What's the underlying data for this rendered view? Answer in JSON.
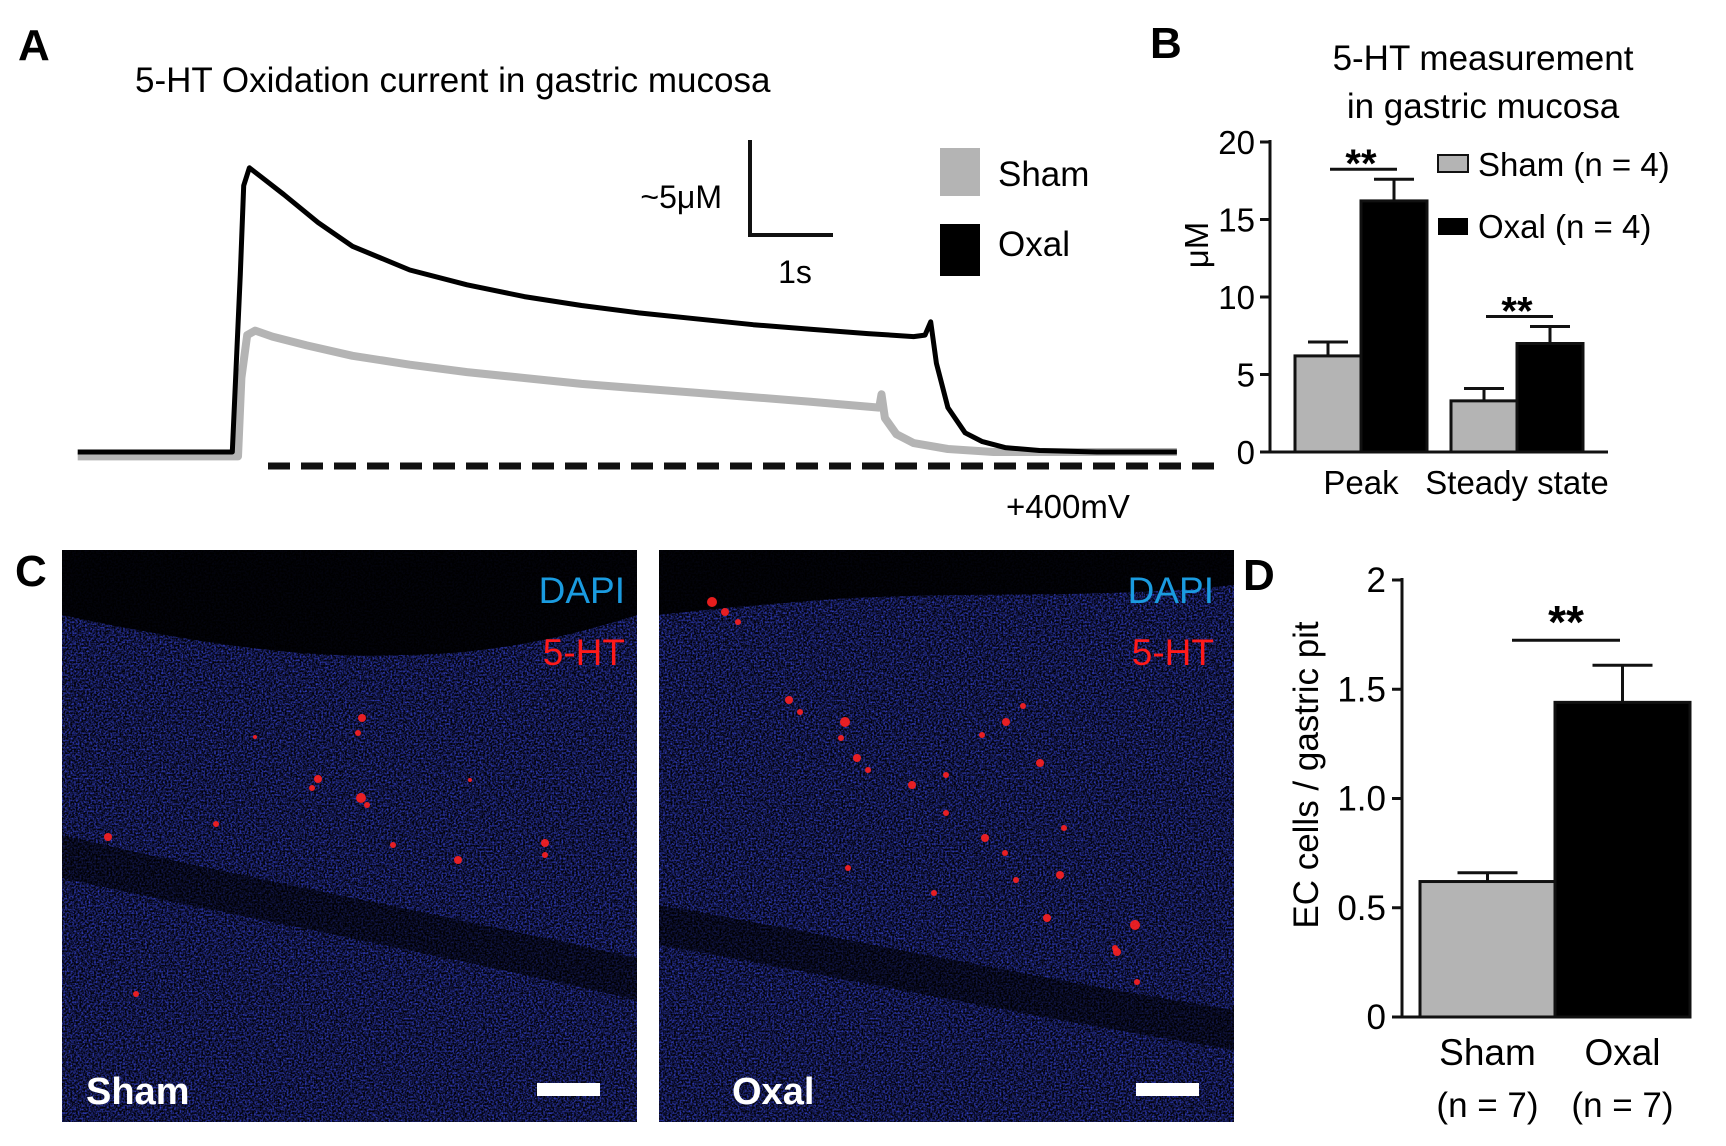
{
  "panels": {
    "A": {
      "letter": "A",
      "title": "5-HT Oxidation current in gastric mucosa",
      "scale_bar": {
        "amplitude_label": "~5μM",
        "time_label": "1s"
      },
      "legend": [
        {
          "name": "Sham",
          "color": "#b4b4b4"
        },
        {
          "name": "Oxal",
          "color": "#000000"
        }
      ],
      "stimulus_label": "+400mV"
    },
    "B": {
      "letter": "B",
      "title_lines": [
        "5-HT measurement",
        "in gastric mucosa"
      ]
    },
    "C": {
      "letter": "C",
      "images": [
        {
          "group": "Sham",
          "stain_labels": [
            "DAPI",
            "5-HT"
          ]
        },
        {
          "group": "Oxal",
          "stain_labels": [
            "DAPI",
            "5-HT"
          ]
        }
      ],
      "stain_colors": {
        "DAPI": "#1a9be0",
        "5-HT": "#ff1a1a"
      }
    },
    "D": {
      "letter": "D"
    }
  },
  "chart_data": [
    {
      "type": "line",
      "panel": "A",
      "title": "5-HT Oxidation current in gastric mucosa",
      "units": "μM",
      "x_unit": "s",
      "x_range": [
        -1.45,
        8.3
      ],
      "y_range": [
        -0.6,
        22
      ],
      "stimulus": {
        "label": "+400mV",
        "start_s": 0,
        "end_s": 6.4
      },
      "series": [
        {
          "name": "Oxal",
          "color": "#000000",
          "x": [
            -1.4,
            -0.05,
            0.02,
            0.05,
            0.1,
            0.2,
            0.4,
            0.7,
            1.0,
            1.5,
            2.0,
            2.5,
            3.0,
            3.5,
            4.0,
            4.5,
            5.0,
            5.5,
            5.9,
            6.0,
            6.05,
            6.1,
            6.2,
            6.35,
            6.5,
            6.7,
            7.0,
            7.5,
            8.0,
            8.2
          ],
          "y": [
            0.0,
            0.0,
            12.0,
            18.0,
            19.2,
            18.6,
            17.4,
            15.5,
            13.9,
            12.3,
            11.3,
            10.5,
            9.9,
            9.4,
            9.0,
            8.6,
            8.3,
            8.0,
            7.8,
            7.9,
            8.8,
            6.0,
            3.0,
            1.3,
            0.7,
            0.3,
            0.1,
            0.0,
            0.0,
            0.0
          ]
        },
        {
          "name": "Sham",
          "color": "#b4b4b4",
          "x": [
            -1.4,
            0.0,
            0.03,
            0.08,
            0.15,
            0.3,
            0.6,
            1.0,
            1.5,
            2.0,
            2.5,
            3.0,
            3.5,
            4.0,
            4.5,
            5.0,
            5.6,
            5.62,
            5.65,
            5.75,
            5.9,
            6.2,
            6.6,
            7.0,
            7.5,
            8.0,
            8.2
          ],
          "y": [
            -0.3,
            -0.3,
            5.0,
            7.9,
            8.2,
            7.8,
            7.2,
            6.5,
            5.9,
            5.4,
            5.0,
            4.6,
            4.3,
            4.0,
            3.7,
            3.4,
            3.0,
            3.9,
            2.3,
            1.2,
            0.6,
            0.2,
            0.0,
            0.0,
            0.0,
            0.0,
            0.0
          ]
        }
      ]
    },
    {
      "type": "bar",
      "panel": "B",
      "title": "5-HT measurement in gastric mucosa",
      "ylabel": "μM",
      "ylim": [
        0,
        20
      ],
      "yticks": [
        0,
        5,
        10,
        15,
        20
      ],
      "categories": [
        "Peak",
        "Steady state"
      ],
      "series": [
        {
          "name": "Sham (n = 4)",
          "color": "#b4b4b4",
          "values": [
            6.2,
            3.3
          ],
          "errors": [
            0.9,
            0.8
          ]
        },
        {
          "name": "Oxal (n = 4)",
          "color": "#000000",
          "values": [
            16.2,
            7.0
          ],
          "errors": [
            1.4,
            1.1
          ]
        }
      ],
      "significance": [
        {
          "category": "Peak",
          "label": "**"
        },
        {
          "category": "Steady state",
          "label": "**"
        }
      ]
    },
    {
      "type": "bar",
      "panel": "D",
      "ylabel": "EC cells / gastric pit",
      "ylim": [
        0,
        2
      ],
      "yticks": [
        0,
        0.5,
        1.0,
        1.5,
        2
      ],
      "ytick_labels": [
        "0",
        "0.5",
        "1.0",
        "1.5",
        "2"
      ],
      "categories": [
        "Sham",
        "Oxal"
      ],
      "category_n": [
        "(n = 7)",
        "(n = 7)"
      ],
      "colors": [
        "#b4b4b4",
        "#000000"
      ],
      "values": [
        0.62,
        1.44
      ],
      "errors": [
        0.04,
        0.17
      ],
      "significance": [
        {
          "between": [
            "Sham",
            "Oxal"
          ],
          "label": "**"
        }
      ]
    }
  ]
}
